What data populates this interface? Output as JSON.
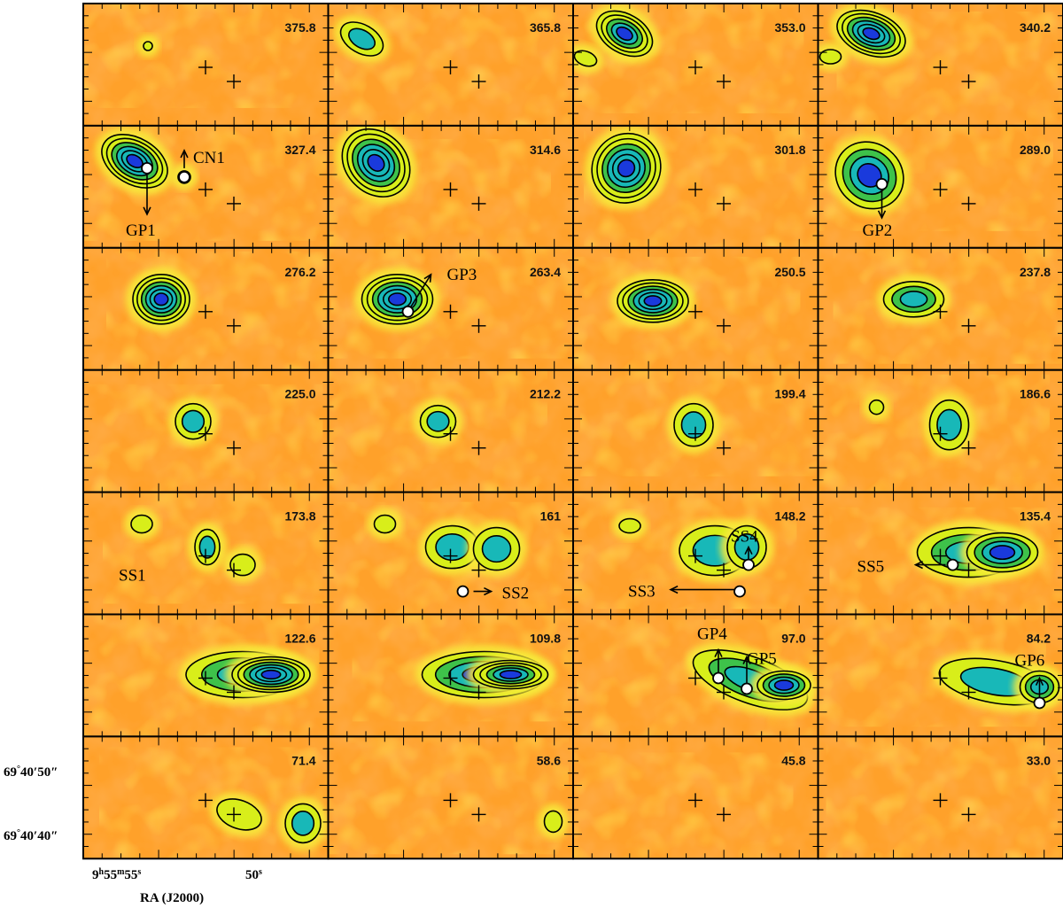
{
  "chart_data": {
    "type": "heatmap",
    "layout": {
      "rows": 7,
      "cols": 4
    },
    "colormap": [
      "#ff7a2a",
      "#ffd21a",
      "#d8ee1a",
      "#3ec24a",
      "#18b8b8",
      "#1a3adc"
    ],
    "velocities": [
      "375.8",
      "365.8",
      "353.0",
      "340.2",
      "327.4",
      "314.6",
      "301.8",
      "289.0",
      "276.2",
      "263.4",
      "250.5",
      "237.8",
      "225.0",
      "212.2",
      "199.4",
      "186.6",
      "173.8",
      "161",
      "148.2",
      "135.4",
      "122.6",
      "109.8",
      "97.0",
      "84.2",
      "71.4",
      "58.6",
      "45.8",
      "33.0"
    ],
    "y_tick_labels": [
      {
        "deg": "69",
        "min": "40",
        "sec": "50"
      },
      {
        "deg": "69",
        "min": "40",
        "sec": "40"
      }
    ],
    "x_tick_labels": [
      {
        "h": "9",
        "m": "55",
        "s": "55"
      },
      {
        "s": "50"
      }
    ],
    "xlabel": "RA (J2000)",
    "features": [
      {
        "name": "CN1",
        "panel": 4
      },
      {
        "name": "GP1",
        "panel": 4
      },
      {
        "name": "GP2",
        "panel": 7
      },
      {
        "name": "GP3",
        "panel": 9
      },
      {
        "name": "SS1",
        "panel": 16
      },
      {
        "name": "SS2",
        "panel": 17
      },
      {
        "name": "SS3",
        "panel": 18
      },
      {
        "name": "SS4",
        "panel": 18
      },
      {
        "name": "SS5",
        "panel": 19
      },
      {
        "name": "GP4",
        "panel": 22
      },
      {
        "name": "GP5",
        "panel": 22
      },
      {
        "name": "GP6",
        "panel": 23
      }
    ]
  }
}
